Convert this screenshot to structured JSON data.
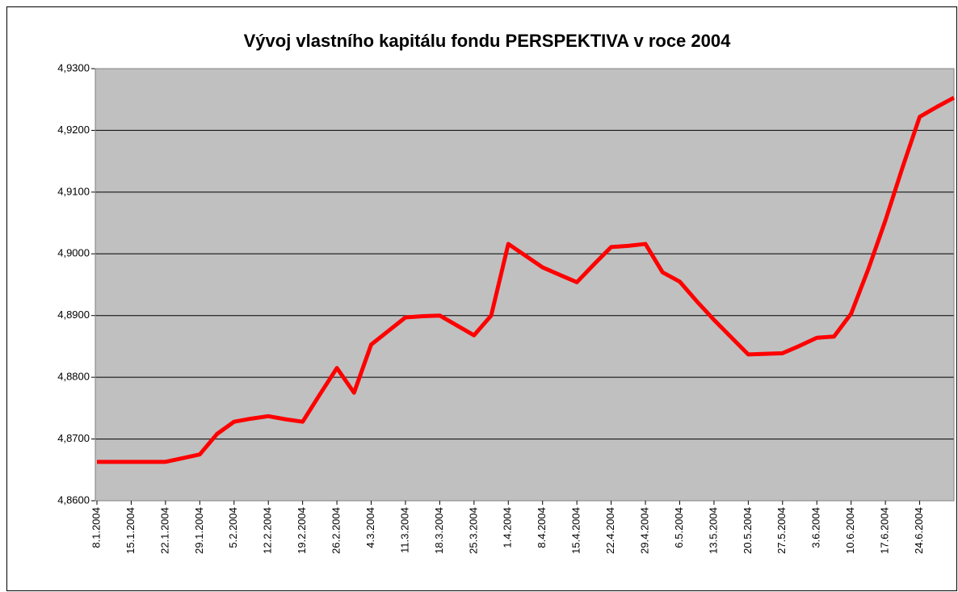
{
  "chart_data": {
    "type": "line",
    "title": "Vývoj vlastního kapitálu fondu PERSPEKTIVA v roce 2004",
    "categories": [
      "8.1.2004",
      null,
      "15.1.2004",
      null,
      "22.1.2004",
      null,
      "29.1.2004",
      null,
      "5.2.2004",
      null,
      "12.2.2004",
      null,
      "19.2.2004",
      null,
      "26.2.2004",
      null,
      "4.3.2004",
      null,
      "11.3.2004",
      null,
      "18.3.2004",
      null,
      "25.3.2004",
      null,
      "1.4.2004",
      null,
      "8.4.2004",
      null,
      "15.4.2004",
      null,
      "22.4.2004",
      null,
      "29.4.2004",
      null,
      "6.5.2004",
      null,
      "13.5.2004",
      null,
      "20.5.2004",
      null,
      "27.5.2004",
      null,
      "3.6.2004",
      null,
      "10.6.2004",
      null,
      "17.6.2004",
      null,
      "24.6.2004",
      null,
      null
    ],
    "series": [
      {
        "color": "#ff0000",
        "values": [
          4.8663,
          4.8663,
          4.8663,
          4.8663,
          4.8663,
          4.8669,
          4.8675,
          4.8708,
          4.8728,
          4.8733,
          4.8737,
          4.8732,
          4.8728,
          4.8772,
          4.8815,
          4.8775,
          4.8853,
          4.8875,
          4.8897,
          4.8899,
          4.89,
          4.8884,
          4.8868,
          4.89,
          4.9016,
          4.8997,
          4.8978,
          4.8966,
          4.8954,
          4.8983,
          4.9011,
          4.9013,
          4.9016,
          4.897,
          4.8955,
          4.8923,
          4.8893,
          4.8865,
          4.8837,
          4.8838,
          4.8839,
          4.8851,
          4.8864,
          4.8866,
          4.8903,
          4.8975,
          4.9054,
          4.914,
          4.9222,
          4.9238,
          4.9253
        ]
      }
    ],
    "ylim": [
      4.86,
      4.93
    ],
    "yticks": [
      {
        "value": 4.86,
        "label": "4,8600"
      },
      {
        "value": 4.87,
        "label": "4,8700"
      },
      {
        "value": 4.88,
        "label": "4,8800"
      },
      {
        "value": 4.89,
        "label": "4,8900"
      },
      {
        "value": 4.9,
        "label": "4,9000"
      },
      {
        "value": 4.91,
        "label": "4,9100"
      },
      {
        "value": 4.92,
        "label": "4,9200"
      },
      {
        "value": 4.93,
        "label": "4,9300"
      }
    ],
    "grid": true,
    "background": "#c0c0c0"
  }
}
